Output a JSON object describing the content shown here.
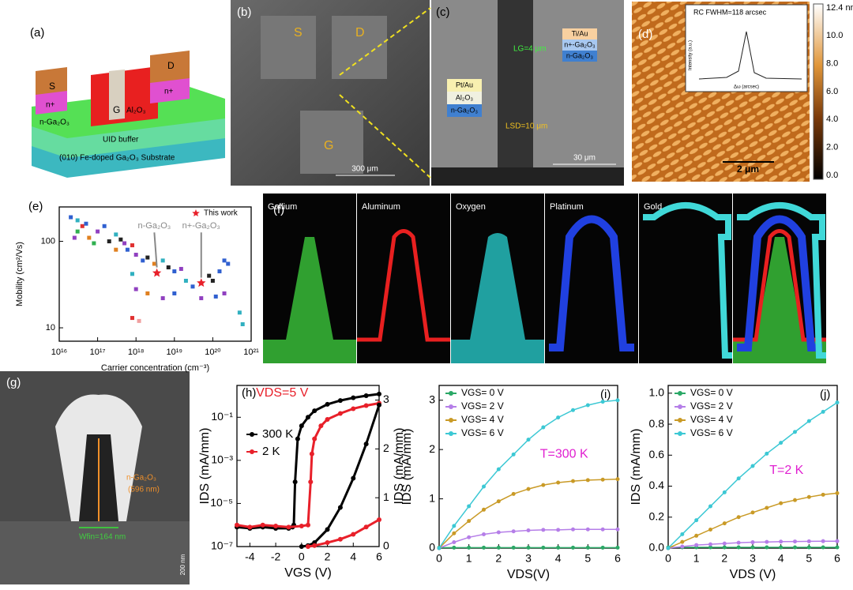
{
  "chart_data": [
    {
      "type": "scatter",
      "label": "(e)",
      "xlabel": "Carrier concentration (cm⁻³)",
      "ylabel": "Mobility (cm²/Vs)",
      "xscale": "log",
      "yscale": "log",
      "xlim": [
        1e+16,
        1e+21
      ],
      "ylim": [
        7,
        250
      ],
      "xticks": [
        {
          "value": 1e+16,
          "label": "10¹⁶"
        },
        {
          "value": 1e+17,
          "label": "10¹⁷"
        },
        {
          "value": 1e+18,
          "label": "10¹⁸"
        },
        {
          "value": 1e+19,
          "label": "10¹⁹"
        },
        {
          "value": 1e+20,
          "label": "10²⁰"
        },
        {
          "value": 1e+21,
          "label": "10²¹"
        }
      ],
      "yticks": [
        10,
        100
      ],
      "series": [
        {
          "name": "This work",
          "color": "#e8202a",
          "x": [
            3.5e+18,
            5e+19
          ],
          "values": [
            43,
            33
          ]
        }
      ],
      "points": {
        "x": [
          2e+16,
          3e+16,
          4e+16,
          5e+16,
          3e+16,
          2.5e+16,
          6e+16,
          1e+17,
          1.5e+17,
          8e+16,
          2e+17,
          3e+17,
          4e+17,
          5e+17,
          3e+17,
          6e+17,
          8e+17,
          1e+18,
          1.5e+18,
          2e+18,
          3e+18,
          5e+18,
          7e+18,
          1e+19,
          1.5e+19,
          8e+17,
          1e+18,
          2e+18,
          5e+18,
          1e+19,
          2e+19,
          3e+19,
          5e+19,
          8e+19,
          1e+20,
          1.5e+20,
          2e+20,
          2.5e+20,
          1.2e+20,
          2e+20,
          5e+20,
          6e+20,
          8e+17,
          1.2e+18
        ],
        "values": [
          190,
          175,
          150,
          160,
          130,
          110,
          110,
          130,
          150,
          95,
          100,
          120,
          105,
          95,
          80,
          80,
          90,
          70,
          60,
          65,
          55,
          60,
          50,
          45,
          48,
          42,
          28,
          25,
          22,
          25,
          35,
          30,
          22,
          40,
          35,
          45,
          60,
          55,
          23,
          25,
          15,
          11,
          13,
          12
        ],
        "colors": [
          "#3060d0",
          "#30b0c0",
          "#e03030",
          "#3060d0",
          "#30b050",
          "#9040c0",
          "#e08020",
          "#9040c0",
          "#3060d0",
          "#30b050",
          "#222222",
          "#30b0c0",
          "#222222",
          "#9040c0",
          "#e08020",
          "#3060d0",
          "#e03030",
          "#9040c0",
          "#3060d0",
          "#222222",
          "#e08020",
          "#30b0c0",
          "#222222",
          "#3060d0",
          "#9040c0",
          "#30b0c0",
          "#9040c0",
          "#e08020",
          "#9040c0",
          "#3060d0",
          "#30b0c0",
          "#3060d0",
          "#9040c0",
          "#222222",
          "#222222",
          "#3060d0",
          "#3060d0",
          "#3060d0",
          "#3060d0",
          "#9040c0",
          "#30b0c0",
          "#30b0c0",
          "#e03030",
          "#f0a0a0"
        ]
      },
      "annotations": [
        {
          "text": "n-Ga₂O₃",
          "color": "#888888"
        },
        {
          "text": "n+-Ga₂O₃",
          "color": "#888888"
        }
      ]
    },
    {
      "type": "line",
      "label": "(h)",
      "xlabel": "VGS (V)",
      "ylabel": "IDS (mA/mm)",
      "y2label": "IDS (mA/mm)",
      "yscale": "log",
      "xlim": [
        -5,
        6
      ],
      "ylim": [
        1e-07,
        3
      ],
      "y2lim": [
        0,
        3.3
      ],
      "xticks": [
        -4,
        -2,
        0,
        2,
        4,
        6
      ],
      "yticks": [
        {
          "value": 1e-07,
          "label": "10⁻⁷"
        },
        {
          "value": 1e-05,
          "label": "10⁻⁵"
        },
        {
          "value": 0.001,
          "label": "10⁻³"
        },
        {
          "value": 0.1,
          "label": "10⁻¹"
        }
      ],
      "y2ticks": [
        0,
        1,
        2,
        3
      ],
      "series": [
        {
          "name": "300 K",
          "color": "#000000",
          "x": [
            -5,
            -4,
            -3,
            -2,
            -1,
            -0.7,
            -0.6,
            -0.5,
            -0.3,
            0,
            0.5,
            1,
            2,
            3,
            4,
            5,
            6
          ],
          "values": [
            8e-07,
            7e-07,
            8e-07,
            7e-07,
            7e-07,
            8e-07,
            1e-06,
            0.0001,
            0.01,
            0.04,
            0.1,
            0.2,
            0.4,
            0.6,
            0.8,
            1.0,
            1.2
          ]
        },
        {
          "name": "2 K",
          "color": "#e8202a",
          "x": [
            -5,
            -4,
            -3,
            -2,
            -1,
            0,
            0.5,
            0.7,
            0.8,
            1,
            1.5,
            2,
            3,
            4,
            5,
            6
          ],
          "values": [
            1e-06,
            8e-07,
            1e-06,
            9e-07,
            8e-07,
            9e-07,
            1e-06,
            0.0001,
            0.002,
            0.01,
            0.04,
            0.08,
            0.15,
            0.25,
            0.35,
            0.45
          ]
        },
        {
          "color": "#000000",
          "axis": "y2",
          "x": [
            0,
            0.5,
            1,
            2,
            3,
            4,
            5,
            6
          ],
          "values": [
            0,
            0.02,
            0.08,
            0.35,
            0.8,
            1.4,
            2.1,
            2.9
          ]
        },
        {
          "color": "#e8202a",
          "axis": "y2",
          "x": [
            0.5,
            1,
            2,
            3,
            4,
            5,
            6
          ],
          "values": [
            0,
            0.02,
            0.08,
            0.15,
            0.25,
            0.4,
            0.55
          ]
        }
      ],
      "annotations": [
        {
          "text": "VDS=5 V",
          "color": "#e8202a"
        }
      ]
    },
    {
      "type": "line",
      "label": "(i)",
      "xlabel": "VDS(V)",
      "ylabel": "IDS (mA/mm)",
      "xlim": [
        0,
        6
      ],
      "ylim": [
        0,
        3.3
      ],
      "xticks": [
        0,
        1,
        2,
        3,
        4,
        5,
        6
      ],
      "yticks": [
        0,
        1,
        2,
        3
      ],
      "series": [
        {
          "name": "VGS= 0 V",
          "color": "#2aa866",
          "x": [
            0,
            0.5,
            1,
            1.5,
            2,
            2.5,
            3,
            3.5,
            4,
            4.5,
            5,
            5.5,
            6
          ],
          "values": [
            0.01,
            0.01,
            0.01,
            0.01,
            0.01,
            0.01,
            0.01,
            0.01,
            0.01,
            0.01,
            0.01,
            0.01,
            0.01
          ]
        },
        {
          "name": "VGS= 2 V",
          "color": "#b57ee8",
          "x": [
            0,
            0.5,
            1,
            1.5,
            2,
            2.5,
            3,
            3.5,
            4,
            4.5,
            5,
            5.5,
            6
          ],
          "values": [
            0,
            0.12,
            0.22,
            0.28,
            0.32,
            0.34,
            0.36,
            0.37,
            0.37,
            0.38,
            0.38,
            0.38,
            0.38
          ]
        },
        {
          "name": "VGS= 4 V",
          "color": "#c99a26",
          "x": [
            0,
            0.5,
            1,
            1.5,
            2,
            2.5,
            3,
            3.5,
            4,
            4.5,
            5,
            5.5,
            6
          ],
          "values": [
            0,
            0.3,
            0.55,
            0.78,
            0.95,
            1.1,
            1.2,
            1.28,
            1.33,
            1.36,
            1.38,
            1.39,
            1.4
          ]
        },
        {
          "name": "VGS= 6 V",
          "color": "#3cc8d4",
          "x": [
            0,
            0.5,
            1,
            1.5,
            2,
            2.5,
            3,
            3.5,
            4,
            4.5,
            5,
            5.5,
            6
          ],
          "values": [
            0,
            0.45,
            0.85,
            1.25,
            1.6,
            1.9,
            2.2,
            2.45,
            2.65,
            2.8,
            2.9,
            2.97,
            3.0
          ]
        }
      ],
      "annotations": [
        {
          "text": "T=300 K",
          "color": "#e020d0"
        }
      ]
    },
    {
      "type": "line",
      "label": "(j)",
      "xlabel": "VDS (V)",
      "ylabel": "IDS (mA/mm)",
      "xlim": [
        0,
        6
      ],
      "ylim": [
        0,
        1.05
      ],
      "xticks": [
        0,
        1,
        2,
        3,
        4,
        5,
        6
      ],
      "yticks": [
        {
          "value": 0,
          "label": "0.0"
        },
        0.2,
        0.4,
        0.6,
        0.8,
        {
          "value": 1,
          "label": "1.0"
        }
      ],
      "series": [
        {
          "name": "VGS= 0 V",
          "color": "#2aa866",
          "x": [
            0,
            0.5,
            1,
            1.5,
            2,
            2.5,
            3,
            3.5,
            4,
            4.5,
            5,
            5.5,
            6
          ],
          "values": [
            0.005,
            0.005,
            0.005,
            0.005,
            0.005,
            0.005,
            0.005,
            0.005,
            0.005,
            0.005,
            0.005,
            0.005,
            0.005
          ]
        },
        {
          "name": "VGS= 2 V",
          "color": "#b57ee8",
          "x": [
            0,
            0.5,
            1,
            1.5,
            2,
            2.5,
            3,
            3.5,
            4,
            4.5,
            5,
            5.5,
            6
          ],
          "values": [
            0,
            0.01,
            0.02,
            0.025,
            0.03,
            0.035,
            0.038,
            0.04,
            0.042,
            0.043,
            0.044,
            0.045,
            0.045
          ]
        },
        {
          "name": "VGS= 4 V",
          "color": "#c99a26",
          "x": [
            0,
            0.5,
            1,
            1.5,
            2,
            2.5,
            3,
            3.5,
            4,
            4.5,
            5,
            5.5,
            6
          ],
          "values": [
            0,
            0.04,
            0.08,
            0.12,
            0.16,
            0.2,
            0.23,
            0.26,
            0.29,
            0.31,
            0.33,
            0.345,
            0.355
          ]
        },
        {
          "name": "VGS= 6 V",
          "color": "#3cc8d4",
          "x": [
            0,
            0.5,
            1,
            1.5,
            2,
            2.5,
            3,
            3.5,
            4,
            4.5,
            5,
            5.5,
            6
          ],
          "values": [
            0,
            0.09,
            0.18,
            0.27,
            0.36,
            0.45,
            0.53,
            0.61,
            0.68,
            0.75,
            0.82,
            0.88,
            0.94
          ]
        }
      ],
      "annotations": [
        {
          "text": "T=2 K",
          "color": "#e020d0"
        }
      ]
    }
  ],
  "panels": {
    "a": {
      "label": "(a)",
      "source": "S",
      "drain": "D",
      "nplus": [
        "n+",
        "n+"
      ],
      "gate": "G",
      "oxide": "Al₂O₃",
      "channel": "n-Ga₂O₃",
      "buffer": "UID buffer",
      "substrate": "(010) Fe-doped Ga₂O₃ Substrate"
    },
    "b": {
      "label": "(b)",
      "source": "S",
      "drain": "D",
      "gate": "G",
      "scale": "300 μm"
    },
    "c": {
      "label": "(c)",
      "stack1": [
        "Ti/Au",
        "n+-Ga₂O₃",
        "n-Ga₂O₃"
      ],
      "stack2": [
        "Pt/Au",
        "Al₂O₃",
        "n-Ga₂O₃"
      ],
      "lg": "LG=4 μm",
      "lsd": "LSD=10 μm",
      "scale": "30 μm"
    },
    "d": {
      "label": "(d)",
      "inset_title": "RC FWHM=118 arcsec",
      "inset_ylabel": "Intensity (a.u.)",
      "inset_xlabel": "Δω (arcsec)",
      "scale": "2 μm",
      "colorbar": [
        "12.4 nm",
        "10.0",
        "8.0",
        "6.0",
        "4.0",
        "2.0",
        "0.0"
      ]
    },
    "f": {
      "label": "(f)",
      "maps": [
        "Gallium",
        "Aluminum",
        "Oxygen",
        "Platinum",
        "Gold"
      ]
    },
    "g": {
      "label": "(g)",
      "material": "n-Ga₂O₃",
      "height": "(596 nm)",
      "width": "Wfin=164 nm",
      "scale": "200 nm"
    }
  }
}
